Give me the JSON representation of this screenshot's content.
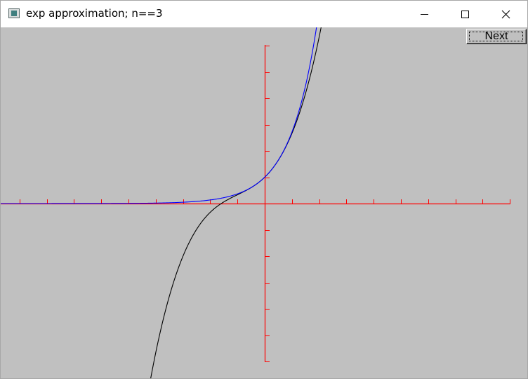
{
  "window": {
    "title": "exp approximation; n==3",
    "controls": {
      "minimize": "minimize-icon",
      "maximize": "maximize-icon",
      "close": "close-icon"
    }
  },
  "toolbar": {
    "next_label": "Next"
  },
  "colors": {
    "background": "#c0c0c0",
    "axes": "#ff0000",
    "exp_curve": "#0000ff",
    "approximation_curve": "#000000"
  },
  "chart_data": {
    "type": "line",
    "xlim": [
      -10,
      9
    ],
    "ylim": [
      -6,
      6
    ],
    "x_tick_step": 1,
    "y_tick_step": 1,
    "grid": false,
    "series": [
      {
        "function": "exp(x)",
        "color": "#0000ff"
      },
      {
        "function": "1 + x + x^2/2 + x^3/6",
        "terms": 3,
        "color": "#000000"
      }
    ]
  }
}
